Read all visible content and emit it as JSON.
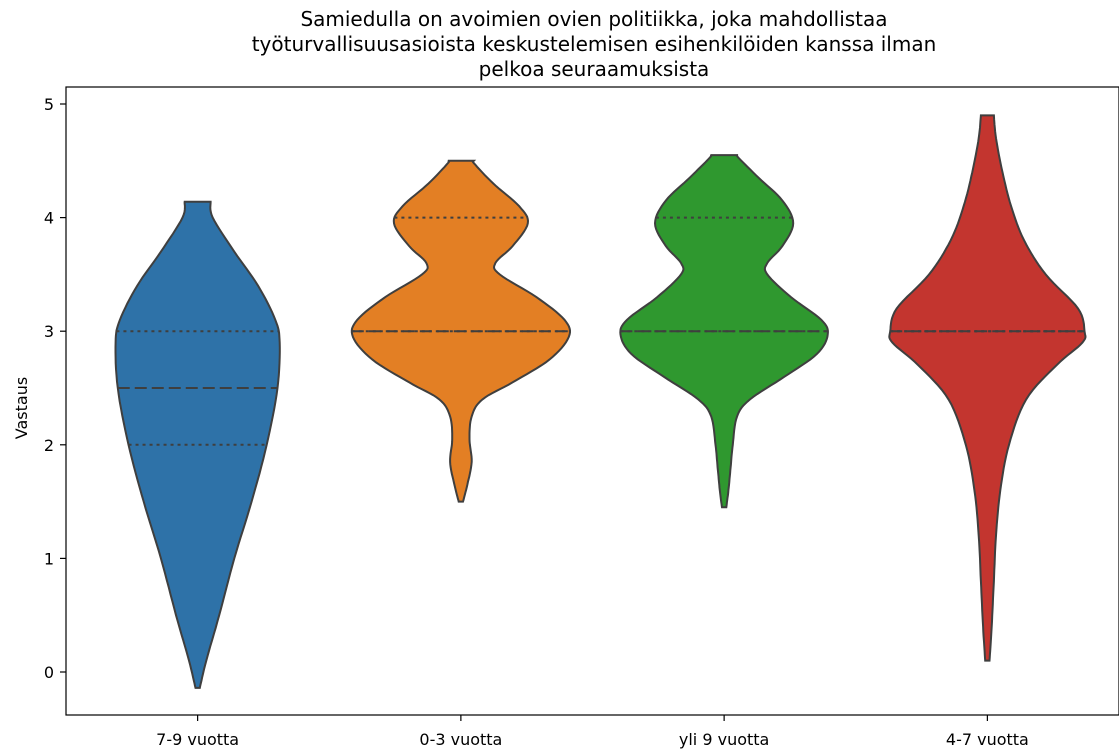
{
  "chart_data": {
    "type": "violin",
    "title": "Samiedulla on avoimien ovien politiikka, joka mahdollistaa työturvallisuusasioista keskustelemisen esihenkilöiden kanssa ilman pelkoa seuraamuksista",
    "title_lines": [
      "Samiedulla on avoimien ovien politiikka, joka mahdollistaa",
      "työturvallisuusasioista keskustelemisen esihenkilöiden kanssa ilman",
      "pelkoa seuraamuksista"
    ],
    "xlabel": "",
    "ylabel": "Vastaus",
    "ylim": [
      -0.38,
      5.15
    ],
    "yticks": [
      0,
      1,
      2,
      3,
      4,
      5
    ],
    "grid": false,
    "categories": [
      "7-9 vuotta",
      "0-3 vuotta",
      "yli 9 vuotta",
      "4-7 vuotta"
    ],
    "colors": [
      "#2e72a8",
      "#e37f24",
      "#2f982f",
      "#c3352f"
    ],
    "violins": [
      {
        "category": "7-9 vuotta",
        "min": -0.14,
        "max": 4.14,
        "q1": 2.0,
        "median": 2.5,
        "q3": 3.0,
        "density": [
          [
            -0.14,
            0.01
          ],
          [
            0.1,
            0.04
          ],
          [
            0.5,
            0.1
          ],
          [
            1.0,
            0.17
          ],
          [
            1.5,
            0.25
          ],
          [
            2.0,
            0.32
          ],
          [
            2.5,
            0.37
          ],
          [
            2.9,
            0.38
          ],
          [
            3.1,
            0.36
          ],
          [
            3.4,
            0.28
          ],
          [
            3.7,
            0.17
          ],
          [
            4.0,
            0.07
          ],
          [
            4.14,
            0.06
          ]
        ]
      },
      {
        "category": "0-3 vuotta",
        "min": 1.5,
        "max": 4.5,
        "q1": 3.0,
        "median": 3.0,
        "q3": 4.0,
        "density": [
          [
            1.5,
            0.01
          ],
          [
            1.65,
            0.03
          ],
          [
            1.85,
            0.05
          ],
          [
            2.05,
            0.04
          ],
          [
            2.25,
            0.05
          ],
          [
            2.4,
            0.1
          ],
          [
            2.55,
            0.24
          ],
          [
            2.75,
            0.41
          ],
          [
            2.95,
            0.5
          ],
          [
            3.1,
            0.48
          ],
          [
            3.3,
            0.35
          ],
          [
            3.5,
            0.18
          ],
          [
            3.6,
            0.16
          ],
          [
            3.75,
            0.24
          ],
          [
            3.95,
            0.31
          ],
          [
            4.1,
            0.27
          ],
          [
            4.3,
            0.15
          ],
          [
            4.48,
            0.06
          ],
          [
            4.5,
            0.06
          ]
        ]
      },
      {
        "category": "yli 9 vuotta",
        "min": 1.45,
        "max": 4.55,
        "q1": 3.0,
        "median": 3.0,
        "q3": 4.0,
        "density": [
          [
            1.45,
            0.01
          ],
          [
            1.6,
            0.02
          ],
          [
            1.8,
            0.03
          ],
          [
            2.0,
            0.04
          ],
          [
            2.25,
            0.06
          ],
          [
            2.4,
            0.12
          ],
          [
            2.6,
            0.28
          ],
          [
            2.8,
            0.43
          ],
          [
            2.97,
            0.48
          ],
          [
            3.1,
            0.45
          ],
          [
            3.3,
            0.31
          ],
          [
            3.5,
            0.2
          ],
          [
            3.6,
            0.2
          ],
          [
            3.75,
            0.27
          ],
          [
            3.95,
            0.32
          ],
          [
            4.15,
            0.27
          ],
          [
            4.35,
            0.16
          ],
          [
            4.52,
            0.07
          ],
          [
            4.55,
            0.06
          ]
        ]
      },
      {
        "category": "4-7 vuotta",
        "min": 0.1,
        "max": 4.9,
        "q1": 3.0,
        "median": 3.0,
        "q3": 3.0,
        "density": [
          [
            0.1,
            0.01
          ],
          [
            0.4,
            0.02
          ],
          [
            0.8,
            0.03
          ],
          [
            1.2,
            0.04
          ],
          [
            1.6,
            0.06
          ],
          [
            2.0,
            0.1
          ],
          [
            2.4,
            0.18
          ],
          [
            2.7,
            0.32
          ],
          [
            2.9,
            0.44
          ],
          [
            3.0,
            0.45
          ],
          [
            3.2,
            0.42
          ],
          [
            3.5,
            0.27
          ],
          [
            3.8,
            0.17
          ],
          [
            4.1,
            0.11
          ],
          [
            4.4,
            0.07
          ],
          [
            4.7,
            0.04
          ],
          [
            4.9,
            0.03
          ]
        ]
      }
    ]
  }
}
